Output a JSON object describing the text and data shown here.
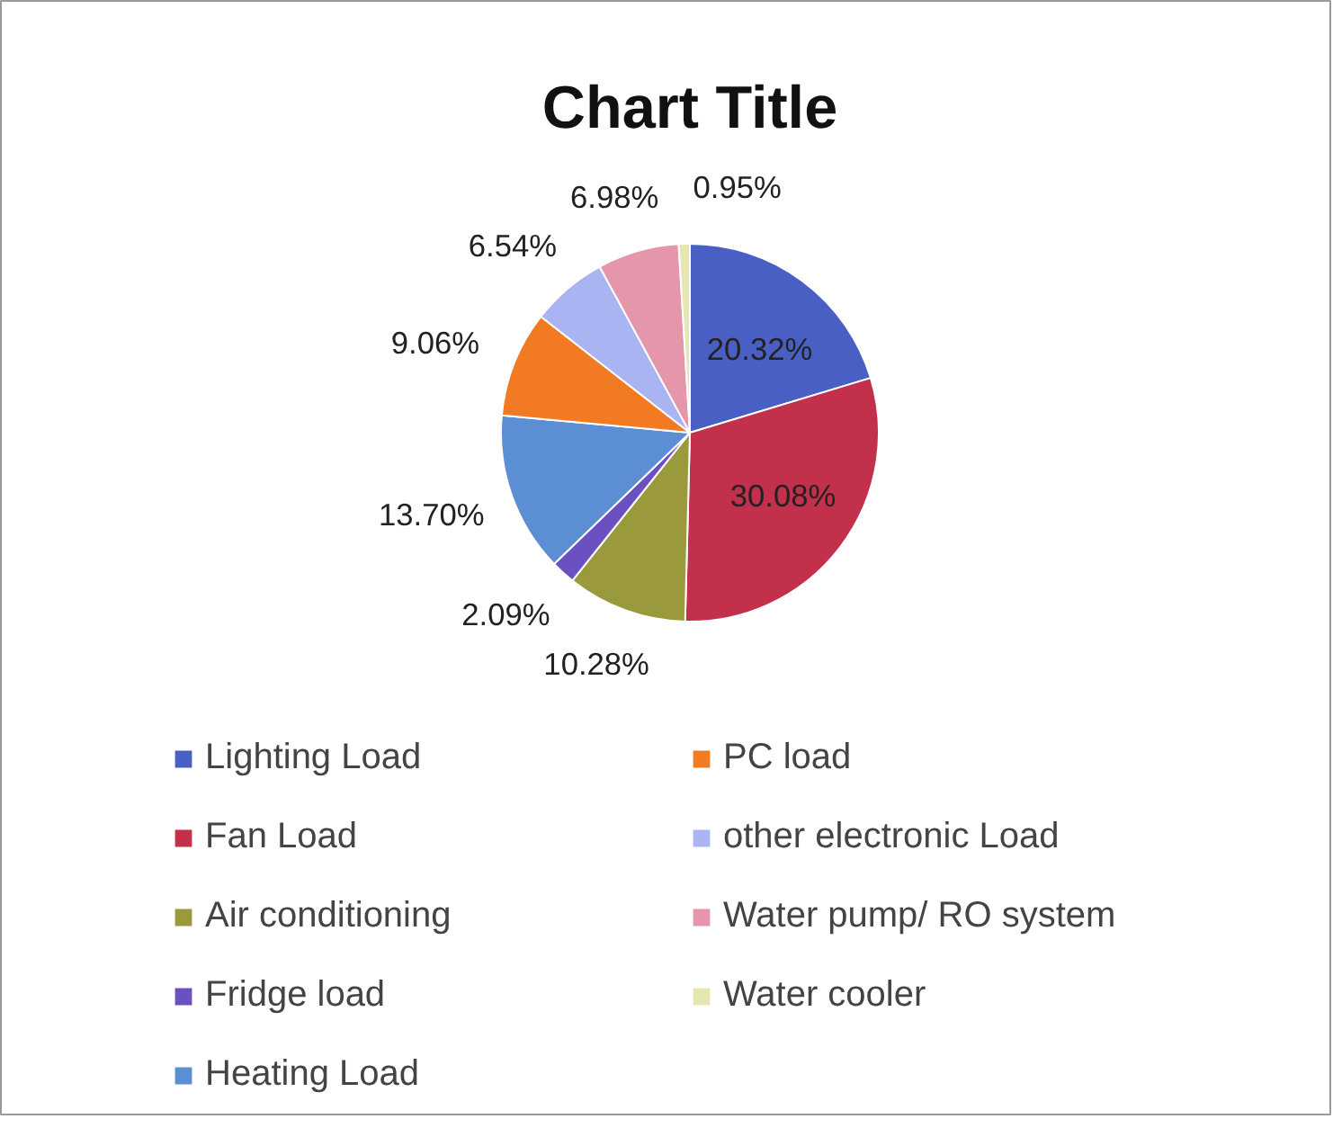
{
  "chart_data": {
    "type": "pie",
    "title": "Chart Title",
    "categories": [
      "Lighting Load",
      "Fan Load",
      "Air conditioning",
      "Fridge load",
      "Heating Load",
      "PC load",
      "other electronic Load",
      "Water pump/ RO system",
      "Water cooler"
    ],
    "values": [
      20.32,
      30.08,
      10.28,
      2.09,
      13.7,
      9.06,
      6.54,
      6.98,
      0.95
    ],
    "colors": [
      "#4a5fc4",
      "#c2304c",
      "#9a9a3c",
      "#6a50c0",
      "#5b8ed2",
      "#f27a22",
      "#aab4f2",
      "#e596aa",
      "#e6e6b2"
    ],
    "value_labels": [
      "20.32%",
      "30.08%",
      "10.28%",
      "2.09%",
      "13.70%",
      "9.06%",
      "6.54%",
      "6.98%",
      "0.95%"
    ],
    "legend": "bottom"
  }
}
